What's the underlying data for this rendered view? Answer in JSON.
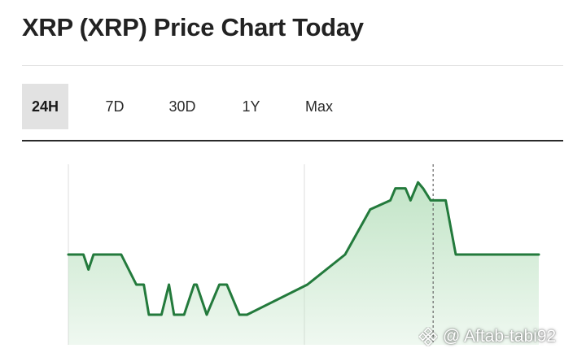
{
  "page": {
    "title": "XRP (XRP) Price Chart Today"
  },
  "tabs": [
    {
      "label": "24H",
      "active": true
    },
    {
      "label": "7D",
      "active": false
    },
    {
      "label": "30D",
      "active": false
    },
    {
      "label": "1Y",
      "active": false
    },
    {
      "label": "Max",
      "active": false
    }
  ],
  "chart_data": {
    "type": "area",
    "period": "24H",
    "y_axis_labels": "none shown",
    "x_axis_labels": "none shown",
    "x": [
      0,
      0.6,
      0.8,
      1,
      1.2,
      2.1,
      2.7,
      3,
      3.2,
      3.4,
      3.7,
      4,
      4.2,
      4.6,
      5,
      5.1,
      5.5,
      6,
      6.3,
      6.8,
      7.1,
      9.5,
      11,
      12,
      12.8,
      13,
      13.4,
      13.6,
      13.9,
      14.1,
      14.4,
      14.7,
      15,
      15.4,
      18.7
    ],
    "y": [
      0.6,
      0.6,
      0.55,
      0.6,
      0.6,
      0.6,
      0.5,
      0.5,
      0.4,
      0.4,
      0.4,
      0.5,
      0.4,
      0.4,
      0.5,
      0.5,
      0.4,
      0.5,
      0.5,
      0.4,
      0.4,
      0.5,
      0.6,
      0.75,
      0.78,
      0.82,
      0.82,
      0.78,
      0.84,
      0.82,
      0.78,
      0.78,
      0.78,
      0.6,
      0.6
    ],
    "x_range": [
      0,
      18.7
    ],
    "y_range": [
      0.3,
      0.9
    ],
    "line_color": "#237a3c",
    "fill_color": "#bfe3c4",
    "crosshair_x": 14.5
  },
  "watermark": {
    "text": "@ Aftab-tabi92",
    "icon": "binance-logo-icon"
  }
}
